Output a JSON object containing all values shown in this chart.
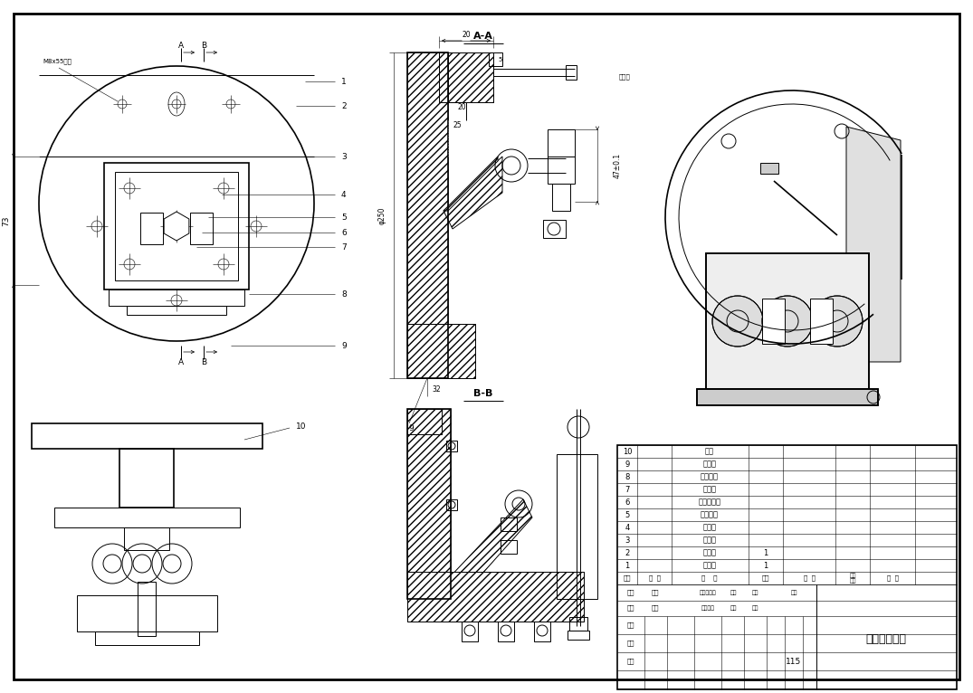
{
  "background_color": "#ffffff",
  "drawing_title": "弯管接头夹具",
  "part_number": "115",
  "parts_list": [
    {
      "num": "10",
      "name": "导头"
    },
    {
      "num": "9",
      "name": "光连盘"
    },
    {
      "num": "8",
      "name": "调节连座"
    },
    {
      "num": "7",
      "name": "光限盘"
    },
    {
      "num": "6",
      "name": "调节光限块"
    },
    {
      "num": "5",
      "name": "调位置里"
    },
    {
      "num": "4",
      "name": "光连头"
    },
    {
      "num": "3",
      "name": "铜垫头"
    },
    {
      "num": "2",
      "name": "夹具体",
      "qty": "1"
    },
    {
      "num": "1",
      "name": "平锥块",
      "qty": "1"
    }
  ]
}
